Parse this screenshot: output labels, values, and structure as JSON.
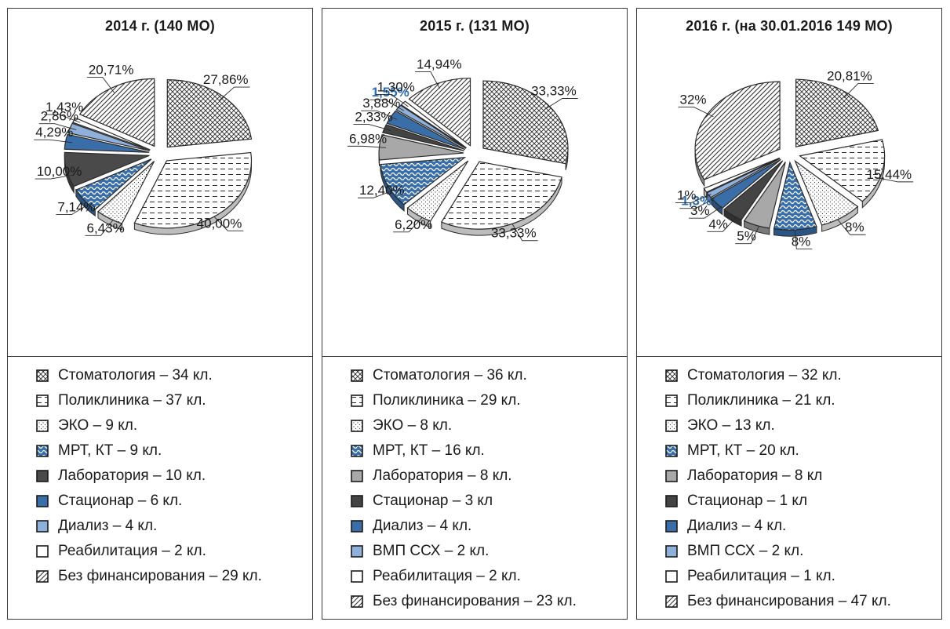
{
  "colors": {
    "stoma": "#ffffff",
    "poly": "#ffffff",
    "eko": "#ffffff",
    "mrt": "#ffffff",
    "lab_dark": "#4a4a4a",
    "lab_gray": "#a8a8a8",
    "stac_blue": "#3a6ea8",
    "stac_dark": "#444444",
    "dial_light": "#8fb0da",
    "dial_blue": "#3a6ea8",
    "vmp": "#8fb0da",
    "reab": "#ffffff",
    "nofin": "#ffffff",
    "highlight": "#2f6db0"
  },
  "chart_data": [
    {
      "type": "pie",
      "title": "2014 г. (140 МО)",
      "slices": [
        {
          "name": "Стоматология",
          "value": 27.86,
          "label": "27,86%",
          "fill": "stoma"
        },
        {
          "name": "Поликлиника",
          "value": 40.0,
          "label": "40,00%",
          "fill": "poly"
        },
        {
          "name": "ЭКО",
          "value": 6.43,
          "label": "6,43%",
          "fill": "eko"
        },
        {
          "name": "МРТ, КТ",
          "value": 7.14,
          "label": "7,14%",
          "fill": "mrt"
        },
        {
          "name": "Лаборатория",
          "value": 10.0,
          "label": "10,00%",
          "fill": "lab_dark"
        },
        {
          "name": "Стационар",
          "value": 4.29,
          "label": "4,29%",
          "fill": "stac_blue"
        },
        {
          "name": "Диализ",
          "value": 2.86,
          "label": "2,86%",
          "fill": "dial_light"
        },
        {
          "name": "Реабилитация",
          "value": 1.43,
          "label": "1,43%",
          "fill": "reab"
        },
        {
          "name": "Без финансирования",
          "value": 20.71,
          "label": "20,71%",
          "fill": "nofin"
        }
      ],
      "legend": [
        {
          "text": "Стоматология – 34 кл.",
          "fill": "stoma"
        },
        {
          "text": "Поликлиника – 37 кл.",
          "fill": "poly"
        },
        {
          "text": "ЭКО – 9 кл.",
          "fill": "eko"
        },
        {
          "text": "МРТ, КТ – 9 кл.",
          "fill": "mrt"
        },
        {
          "text": "Лаборатория – 10 кл.",
          "fill": "lab_dark"
        },
        {
          "text": "Стационар – 6 кл.",
          "fill": "stac_blue"
        },
        {
          "text": "Диализ – 4 кл.",
          "fill": "dial_light"
        },
        {
          "text": "Реабилитация – 2 кл.",
          "fill": "reab"
        },
        {
          "text": "Без финансирования – 29 кл.",
          "fill": "nofin"
        }
      ]
    },
    {
      "type": "pie",
      "title": "2015 г. (131 МО)",
      "slices": [
        {
          "name": "Стоматология",
          "value": 33.33,
          "label": "33,33%",
          "fill": "stoma"
        },
        {
          "name": "Поликлиника",
          "value": 33.33,
          "label": "33,33%",
          "fill": "poly"
        },
        {
          "name": "ЭКО",
          "value": 6.2,
          "label": "6,20%",
          "fill": "eko"
        },
        {
          "name": "МРТ, КТ",
          "value": 12.4,
          "label": "12,40%",
          "fill": "mrt"
        },
        {
          "name": "Лаборатория",
          "value": 6.98,
          "label": "6,98%",
          "fill": "lab_gray"
        },
        {
          "name": "Стационар",
          "value": 2.33,
          "label": "2,33%",
          "fill": "stac_dark"
        },
        {
          "name": "Диализ",
          "value": 3.88,
          "label": "3,88%",
          "fill": "dial_blue"
        },
        {
          "name": "ВМП ССХ",
          "value": 1.55,
          "label": "1,55%",
          "fill": "vmp",
          "highlight": true
        },
        {
          "name": "Реабилитация",
          "value": 1.3,
          "label": "1,30%",
          "fill": "reab"
        },
        {
          "name": "Без финансирования",
          "value": 14.94,
          "label": "14,94%",
          "fill": "nofin"
        }
      ],
      "legend": [
        {
          "text": "Стоматология – 36 кл.",
          "fill": "stoma"
        },
        {
          "text": "Поликлиника – 29 кл.",
          "fill": "poly"
        },
        {
          "text": "ЭКО – 8 кл.",
          "fill": "eko"
        },
        {
          "text": "МРТ, КТ – 16 кл.",
          "fill": "mrt"
        },
        {
          "text": "Лаборатория – 8 кл.",
          "fill": "lab_gray"
        },
        {
          "text": "Стационар – 3 кл",
          "fill": "stac_dark"
        },
        {
          "text": "Диализ – 4 кл.",
          "fill": "dial_blue"
        },
        {
          "text": "ВМП ССХ – 2 кл.",
          "fill": "vmp"
        },
        {
          "text": "Реабилитация – 2 кл.",
          "fill": "reab"
        },
        {
          "text": "Без финансирования – 23 кл.",
          "fill": "nofin"
        }
      ]
    },
    {
      "type": "pie",
      "title": "2016 г. (на 30.01.2016 149 МО)",
      "slices": [
        {
          "name": "Стоматология",
          "value": 20.81,
          "label": "20,81%",
          "fill": "stoma"
        },
        {
          "name": "Поликлиника",
          "value": 15.44,
          "label": "15,44%",
          "fill": "poly"
        },
        {
          "name": "ЭКО",
          "value": 8,
          "label": "8%",
          "fill": "eko"
        },
        {
          "name": "МРТ, КТ",
          "value": 8,
          "label": "8%",
          "fill": "mrt"
        },
        {
          "name": "Лаборатория",
          "value": 5,
          "label": "5%",
          "fill": "lab_gray"
        },
        {
          "name": "Стационар",
          "value": 4,
          "label": "4%",
          "fill": "stac_dark"
        },
        {
          "name": "Диализ",
          "value": 3,
          "label": "3%",
          "fill": "dial_blue"
        },
        {
          "name": "ВМП ССХ",
          "value": 1.3,
          "label": "1,3%",
          "fill": "vmp",
          "highlight": true
        },
        {
          "name": "Реабилитация",
          "value": 1,
          "label": "1%",
          "fill": "reab"
        },
        {
          "name": "Без финансирования",
          "value": 32,
          "label": "32%",
          "fill": "nofin"
        }
      ],
      "legend": [
        {
          "text": "Стоматология – 32 кл.",
          "fill": "stoma"
        },
        {
          "text": "Поликлиника – 21 кл.",
          "fill": "poly"
        },
        {
          "text": "ЭКО – 13 кл.",
          "fill": "eko"
        },
        {
          "text": "МРТ, КТ – 20 кл.",
          "fill": "mrt"
        },
        {
          "text": "Лаборатория – 8 кл",
          "fill": "lab_gray"
        },
        {
          "text": "Стационар – 1 кл",
          "fill": "stac_dark"
        },
        {
          "text": "Диализ – 4 кл.",
          "fill": "dial_blue"
        },
        {
          "text": "ВМП ССХ – 2 кл.",
          "fill": "vmp"
        },
        {
          "text": "Реабилитация – 1 кл.",
          "fill": "reab"
        },
        {
          "text": "Без финансирования – 47 кл.",
          "fill": "nofin"
        }
      ]
    }
  ]
}
